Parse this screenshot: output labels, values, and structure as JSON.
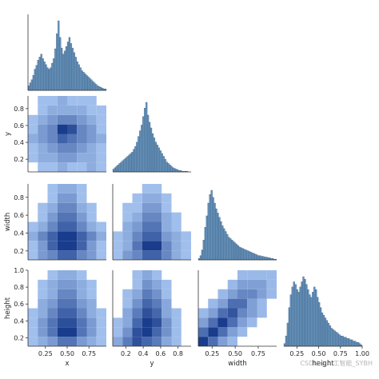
{
  "chart_data": {
    "type": "pairplot-corner",
    "variables": [
      "x",
      "y",
      "width",
      "height"
    ],
    "bar_color": "#4c80b0",
    "heat_color": "#1f77d4",
    "diagonal": {
      "type": "histogram",
      "bins": 50,
      "range": [
        0.05,
        0.95
      ],
      "x_hist_counts": [
        6,
        10,
        14,
        20,
        28,
        33,
        40,
        44,
        48,
        42,
        38,
        34,
        30,
        28,
        30,
        36,
        42,
        55,
        75,
        92,
        70,
        56,
        48,
        52,
        58,
        64,
        70,
        62,
        56,
        50,
        44,
        38,
        34,
        30,
        26,
        24,
        22,
        20,
        18,
        16,
        14,
        12,
        10,
        8,
        6,
        5,
        4,
        3,
        2,
        2
      ],
      "y_hist_counts": [
        4,
        6,
        8,
        10,
        12,
        14,
        16,
        18,
        20,
        22,
        24,
        26,
        28,
        32,
        36,
        42,
        50,
        58,
        66,
        78,
        90,
        98,
        80,
        70,
        62,
        54,
        48,
        42,
        38,
        34,
        30,
        26,
        22,
        18,
        14,
        12,
        10,
        8,
        6,
        5,
        4,
        3,
        2,
        2,
        1,
        1,
        1,
        1,
        0,
        0
      ],
      "width_hist_counts": [
        2,
        6,
        14,
        28,
        46,
        62,
        80,
        92,
        98,
        88,
        80,
        72,
        66,
        60,
        54,
        48,
        44,
        40,
        36,
        32,
        30,
        28,
        26,
        24,
        22,
        20,
        18,
        17,
        16,
        15,
        14,
        13,
        12,
        11,
        10,
        9,
        8,
        7,
        6,
        6,
        5,
        5,
        4,
        4,
        3,
        3,
        2,
        2,
        1,
        1
      ],
      "width_range": [
        0.1,
        0.95
      ],
      "height_hist_counts": [
        2,
        8,
        18,
        30,
        40,
        46,
        50,
        48,
        44,
        42,
        46,
        50,
        54,
        52,
        48,
        44,
        40,
        38,
        42,
        46,
        44,
        38,
        34,
        30,
        26,
        24,
        22,
        20,
        18,
        16,
        14,
        13,
        12,
        11,
        10,
        9,
        8,
        8,
        7,
        7,
        6,
        6,
        5,
        5,
        4,
        4,
        3,
        3,
        2,
        1
      ],
      "height_range": [
        0.1,
        1.0
      ]
    },
    "pair_counts": {
      "y_vs_x": [
        [
          0,
          1,
          1,
          2,
          1,
          1,
          2,
          1
        ],
        [
          1,
          2,
          2,
          3,
          3,
          2,
          2,
          1
        ],
        [
          1,
          2,
          3,
          4,
          4,
          3,
          2,
          1
        ],
        [
          2,
          3,
          4,
          6,
          5,
          4,
          3,
          2
        ],
        [
          1,
          3,
          4,
          8,
          7,
          4,
          3,
          1
        ],
        [
          1,
          2,
          3,
          4,
          4,
          3,
          2,
          1
        ],
        [
          0,
          1,
          2,
          2,
          2,
          2,
          1,
          1
        ],
        [
          0,
          1,
          1,
          2,
          1,
          1,
          1,
          0
        ]
      ],
      "width_vs_x": [
        [
          1,
          3,
          4,
          6,
          6,
          4,
          3,
          1
        ],
        [
          1,
          3,
          6,
          8,
          8,
          6,
          3,
          1
        ],
        [
          2,
          4,
          6,
          8,
          8,
          6,
          4,
          2
        ],
        [
          1,
          2,
          4,
          6,
          6,
          4,
          2,
          1
        ],
        [
          0,
          1,
          3,
          5,
          5,
          3,
          1,
          0
        ],
        [
          0,
          1,
          2,
          4,
          4,
          2,
          1,
          0
        ],
        [
          0,
          0,
          1,
          3,
          3,
          1,
          0,
          0
        ],
        [
          0,
          0,
          1,
          2,
          2,
          1,
          0,
          0
        ]
      ],
      "width_vs_y": [
        [
          1,
          3,
          4,
          6,
          6,
          4,
          2,
          1
        ],
        [
          1,
          2,
          5,
          8,
          8,
          4,
          2,
          1
        ],
        [
          1,
          2,
          4,
          6,
          6,
          3,
          2,
          1
        ],
        [
          0,
          2,
          3,
          5,
          5,
          2,
          1,
          0
        ],
        [
          0,
          1,
          2,
          4,
          4,
          2,
          1,
          0
        ],
        [
          0,
          1,
          1,
          3,
          3,
          1,
          0,
          0
        ],
        [
          0,
          0,
          1,
          2,
          2,
          1,
          0,
          0
        ],
        [
          0,
          0,
          0,
          1,
          1,
          0,
          0,
          0
        ]
      ],
      "height_vs_x": [
        [
          1,
          2,
          3,
          5,
          5,
          3,
          2,
          1
        ],
        [
          1,
          3,
          5,
          8,
          8,
          5,
          3,
          1
        ],
        [
          1,
          3,
          5,
          7,
          7,
          5,
          3,
          1
        ],
        [
          1,
          2,
          4,
          6,
          6,
          4,
          2,
          1
        ],
        [
          0,
          2,
          3,
          5,
          5,
          3,
          2,
          0
        ],
        [
          0,
          1,
          2,
          4,
          4,
          2,
          1,
          0
        ],
        [
          0,
          1,
          2,
          3,
          3,
          2,
          1,
          0
        ],
        [
          0,
          0,
          1,
          2,
          2,
          1,
          0,
          0
        ]
      ],
      "height_vs_y": [
        [
          2,
          4,
          6,
          5,
          4,
          2,
          1,
          0
        ],
        [
          1,
          3,
          6,
          7,
          5,
          3,
          1,
          0
        ],
        [
          1,
          2,
          5,
          7,
          6,
          3,
          1,
          0
        ],
        [
          0,
          2,
          4,
          6,
          5,
          2,
          1,
          0
        ],
        [
          0,
          1,
          3,
          5,
          4,
          2,
          0,
          0
        ],
        [
          0,
          1,
          2,
          4,
          3,
          1,
          0,
          0
        ],
        [
          0,
          0,
          1,
          3,
          2,
          1,
          0,
          0
        ],
        [
          0,
          0,
          1,
          2,
          1,
          0,
          0,
          0
        ]
      ],
      "height_vs_width": [
        [
          6,
          4,
          2,
          1,
          0,
          0,
          0,
          0
        ],
        [
          4,
          6,
          4,
          2,
          1,
          0,
          0,
          0
        ],
        [
          2,
          4,
          6,
          4,
          2,
          1,
          0,
          0
        ],
        [
          1,
          2,
          4,
          5,
          3,
          2,
          1,
          0
        ],
        [
          0,
          1,
          2,
          4,
          4,
          2,
          1,
          0
        ],
        [
          0,
          0,
          1,
          2,
          3,
          3,
          2,
          1
        ],
        [
          0,
          0,
          0,
          1,
          2,
          2,
          2,
          1
        ],
        [
          0,
          0,
          0,
          0,
          1,
          1,
          1,
          1
        ]
      ]
    },
    "ticks": {
      "x_ticks": [
        0.25,
        0.5,
        0.75
      ],
      "x_tick_labels": [
        "0.25",
        "0.50",
        "0.75"
      ],
      "y_ticks": [
        0.2,
        0.4,
        0.6,
        0.8
      ],
      "y_tick_labels": [
        "0.2",
        "0.4",
        "0.6",
        "0.8"
      ],
      "width_ticks": [
        0.25,
        0.5,
        0.75
      ],
      "width_tick_labels": [
        "0.25",
        "0.50",
        "0.75"
      ],
      "width_y_ticks": [
        0.2,
        0.4,
        0.6,
        0.8
      ],
      "width_y_tick_labels": [
        "0.2",
        "0.4",
        "0.6",
        "0.8"
      ],
      "height_ticks": [
        0.25,
        0.5,
        0.75,
        1.0
      ],
      "height_tick_labels": [
        "0.25",
        "0.50",
        "0.75",
        "1.00"
      ],
      "height_y_ticks": [
        0.2,
        0.4,
        0.6,
        0.8,
        1.0
      ],
      "height_y_tick_labels": [
        "0.2",
        "0.4",
        "0.6",
        "0.8",
        "1.0"
      ]
    },
    "ranges": {
      "x": [
        0.05,
        0.95
      ],
      "y": [
        0.05,
        0.95
      ],
      "width": [
        0.1,
        0.95
      ],
      "height": [
        0.1,
        1.0
      ]
    },
    "axis_labels": {
      "x": "x",
      "y": "y",
      "width": "width",
      "height": "height"
    }
  },
  "watermark": "CSDN @AI工智能_SYBH"
}
